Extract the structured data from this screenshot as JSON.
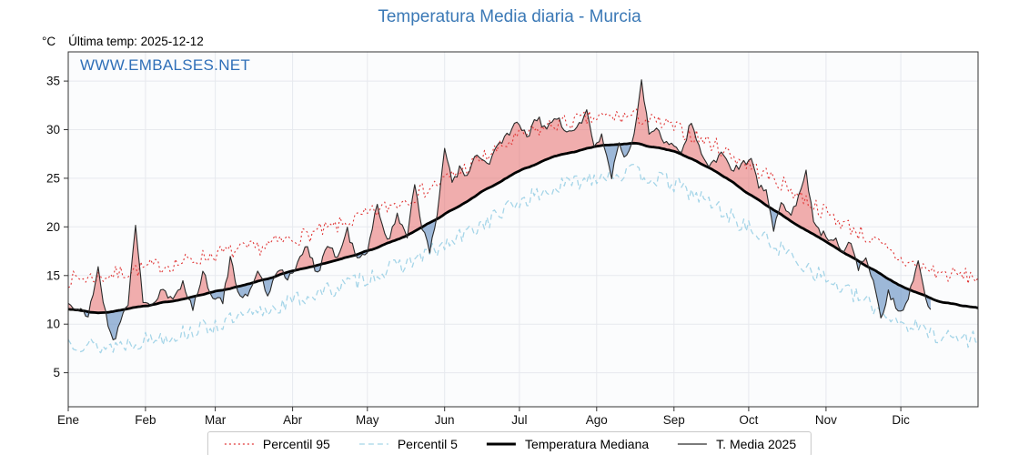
{
  "header": {
    "title": "Temperatura Media diaria - Murcia",
    "y_unit": "°C",
    "last_temp": "Última temp: 2025-12-12",
    "watermark": "WWW.EMBALSES.NET"
  },
  "colors": {
    "title": "#3b79b6",
    "watermark": "#2f6fb8",
    "p95": "#e03434",
    "p5": "#a5d5e8",
    "median": "#000000",
    "t2025": "#2a2a2a",
    "fill_above": "rgba(232,108,108,0.55)",
    "fill_below": "rgba(106,148,196,0.65)",
    "grid": "#e7e9ee",
    "frame": "#333333",
    "plot_bg": "#fbfcfd"
  },
  "chart_data": {
    "type": "line",
    "title": "Temperatura Media diaria - Murcia",
    "xlabel": "",
    "ylabel": "°C",
    "x_tick_labels": [
      "Ene",
      "Feb",
      "Mar",
      "Abr",
      "May",
      "Jun",
      "Jul",
      "Ago",
      "Sep",
      "Oct",
      "Nov",
      "Dic"
    ],
    "month_start_days": [
      0,
      31,
      59,
      90,
      120,
      151,
      181,
      212,
      243,
      273,
      304,
      334
    ],
    "y_ticks": [
      5,
      10,
      15,
      20,
      25,
      30,
      35
    ],
    "ylim": [
      1.5,
      38.0
    ],
    "days_in_year": 365,
    "grid": true,
    "legend_position": "bottom",
    "series": [
      {
        "name": "Percentil 95",
        "style": "dotted",
        "seed": 7,
        "noise": 0.85,
        "smooth": 1,
        "anchors": [
          [
            0,
            14.6
          ],
          [
            14,
            14.9
          ],
          [
            31,
            15.8
          ],
          [
            45,
            16.3
          ],
          [
            59,
            17.2
          ],
          [
            75,
            17.8
          ],
          [
            90,
            18.8
          ],
          [
            105,
            19.8
          ],
          [
            120,
            21.2
          ],
          [
            135,
            22.8
          ],
          [
            151,
            24.8
          ],
          [
            166,
            27.0
          ],
          [
            181,
            29.3
          ],
          [
            196,
            30.6
          ],
          [
            212,
            31.2
          ],
          [
            227,
            31.4
          ],
          [
            243,
            30.2
          ],
          [
            258,
            28.6
          ],
          [
            273,
            26.4
          ],
          [
            289,
            24.0
          ],
          [
            304,
            21.4
          ],
          [
            319,
            19.2
          ],
          [
            334,
            16.6
          ],
          [
            350,
            15.2
          ],
          [
            365,
            14.8
          ]
        ]
      },
      {
        "name": "Percentil 5",
        "style": "dashed",
        "seed": 13,
        "noise": 0.9,
        "smooth": 1,
        "anchors": [
          [
            0,
            8.3
          ],
          [
            14,
            7.6
          ],
          [
            31,
            8.4
          ],
          [
            45,
            9.0
          ],
          [
            59,
            9.9
          ],
          [
            75,
            11.0
          ],
          [
            90,
            12.4
          ],
          [
            105,
            13.5
          ],
          [
            120,
            14.8
          ],
          [
            135,
            16.2
          ],
          [
            151,
            18.0
          ],
          [
            166,
            20.3
          ],
          [
            181,
            22.6
          ],
          [
            196,
            24.0
          ],
          [
            212,
            25.3
          ],
          [
            227,
            25.6
          ],
          [
            243,
            24.4
          ],
          [
            258,
            22.4
          ],
          [
            273,
            19.8
          ],
          [
            289,
            17.2
          ],
          [
            304,
            14.6
          ],
          [
            319,
            12.4
          ],
          [
            334,
            10.2
          ],
          [
            350,
            8.8
          ],
          [
            365,
            8.4
          ]
        ]
      },
      {
        "name": "Temperatura Mediana",
        "style": "thick",
        "seed": 3,
        "noise": 0.12,
        "smooth": 5,
        "anchors": [
          [
            0,
            11.6
          ],
          [
            14,
            11.1
          ],
          [
            31,
            11.9
          ],
          [
            45,
            12.5
          ],
          [
            59,
            13.3
          ],
          [
            75,
            14.3
          ],
          [
            90,
            15.4
          ],
          [
            105,
            16.4
          ],
          [
            120,
            17.5
          ],
          [
            135,
            19.0
          ],
          [
            151,
            21.3
          ],
          [
            166,
            23.6
          ],
          [
            181,
            25.8
          ],
          [
            196,
            27.3
          ],
          [
            212,
            28.3
          ],
          [
            227,
            28.6
          ],
          [
            243,
            27.8
          ],
          [
            258,
            26.0
          ],
          [
            273,
            23.4
          ],
          [
            289,
            20.8
          ],
          [
            304,
            18.4
          ],
          [
            319,
            16.2
          ],
          [
            334,
            13.9
          ],
          [
            350,
            12.3
          ],
          [
            365,
            11.7
          ]
        ]
      },
      {
        "name": "T. Media 2025",
        "style": "thin",
        "seed": 21,
        "noise": 0.45,
        "smooth": 1,
        "end_day": 346,
        "anchors": [
          [
            0,
            12.2
          ],
          [
            4,
            11.4
          ],
          [
            8,
            10.8
          ],
          [
            12,
            15.8
          ],
          [
            15,
            11.0
          ],
          [
            18,
            8.1
          ],
          [
            21,
            10.5
          ],
          [
            24,
            12.3
          ],
          [
            27,
            19.8
          ],
          [
            30,
            12.5
          ],
          [
            34,
            12.0
          ],
          [
            38,
            13.5
          ],
          [
            42,
            12.2
          ],
          [
            46,
            14.5
          ],
          [
            50,
            11.5
          ],
          [
            54,
            15.3
          ],
          [
            58,
            13.0
          ],
          [
            62,
            12.3
          ],
          [
            65,
            16.6
          ],
          [
            68,
            13.6
          ],
          [
            72,
            12.6
          ],
          [
            76,
            15.7
          ],
          [
            80,
            13.0
          ],
          [
            84,
            15.8
          ],
          [
            88,
            14.6
          ],
          [
            92,
            16.2
          ],
          [
            96,
            18.0
          ],
          [
            100,
            15.2
          ],
          [
            104,
            18.2
          ],
          [
            108,
            16.8
          ],
          [
            112,
            19.6
          ],
          [
            116,
            16.6
          ],
          [
            120,
            17.2
          ],
          [
            124,
            22.4
          ],
          [
            128,
            18.6
          ],
          [
            132,
            21.0
          ],
          [
            136,
            19.2
          ],
          [
            139,
            24.6
          ],
          [
            142,
            20.0
          ],
          [
            145,
            17.2
          ],
          [
            148,
            21.2
          ],
          [
            151,
            28.4
          ],
          [
            154,
            24.6
          ],
          [
            157,
            26.0
          ],
          [
            160,
            25.0
          ],
          [
            164,
            27.6
          ],
          [
            168,
            26.2
          ],
          [
            172,
            28.2
          ],
          [
            176,
            29.4
          ],
          [
            180,
            30.6
          ],
          [
            184,
            29.2
          ],
          [
            188,
            31.2
          ],
          [
            192,
            30.0
          ],
          [
            196,
            31.4
          ],
          [
            200,
            29.4
          ],
          [
            204,
            30.2
          ],
          [
            208,
            31.8
          ],
          [
            211,
            28.0
          ],
          [
            214,
            29.6
          ],
          [
            218,
            25.2
          ],
          [
            221,
            28.6
          ],
          [
            224,
            27.0
          ],
          [
            227,
            29.2
          ],
          [
            230,
            35.3
          ],
          [
            233,
            29.4
          ],
          [
            236,
            30.6
          ],
          [
            239,
            29.0
          ],
          [
            242,
            28.6
          ],
          [
            246,
            28.0
          ],
          [
            250,
            30.6
          ],
          [
            254,
            27.4
          ],
          [
            258,
            26.2
          ],
          [
            262,
            27.8
          ],
          [
            266,
            25.8
          ],
          [
            270,
            26.4
          ],
          [
            274,
            26.6
          ],
          [
            277,
            24.4
          ],
          [
            280,
            23.6
          ],
          [
            283,
            19.6
          ],
          [
            286,
            22.6
          ],
          [
            290,
            21.6
          ],
          [
            293,
            23.0
          ],
          [
            296,
            25.6
          ],
          [
            299,
            20.8
          ],
          [
            302,
            19.4
          ],
          [
            305,
            18.6
          ],
          [
            308,
            19.0
          ],
          [
            311,
            17.4
          ],
          [
            314,
            18.6
          ],
          [
            317,
            15.8
          ],
          [
            320,
            16.8
          ],
          [
            323,
            14.4
          ],
          [
            326,
            10.6
          ],
          [
            329,
            13.2
          ],
          [
            332,
            12.0
          ],
          [
            335,
            11.2
          ],
          [
            338,
            13.6
          ],
          [
            341,
            16.8
          ],
          [
            344,
            12.6
          ],
          [
            346,
            11.8
          ]
        ]
      }
    ],
    "legend": [
      "Percentil 95",
      "Percentil 5",
      "Temperatura Mediana",
      "T. Media 2025"
    ]
  }
}
